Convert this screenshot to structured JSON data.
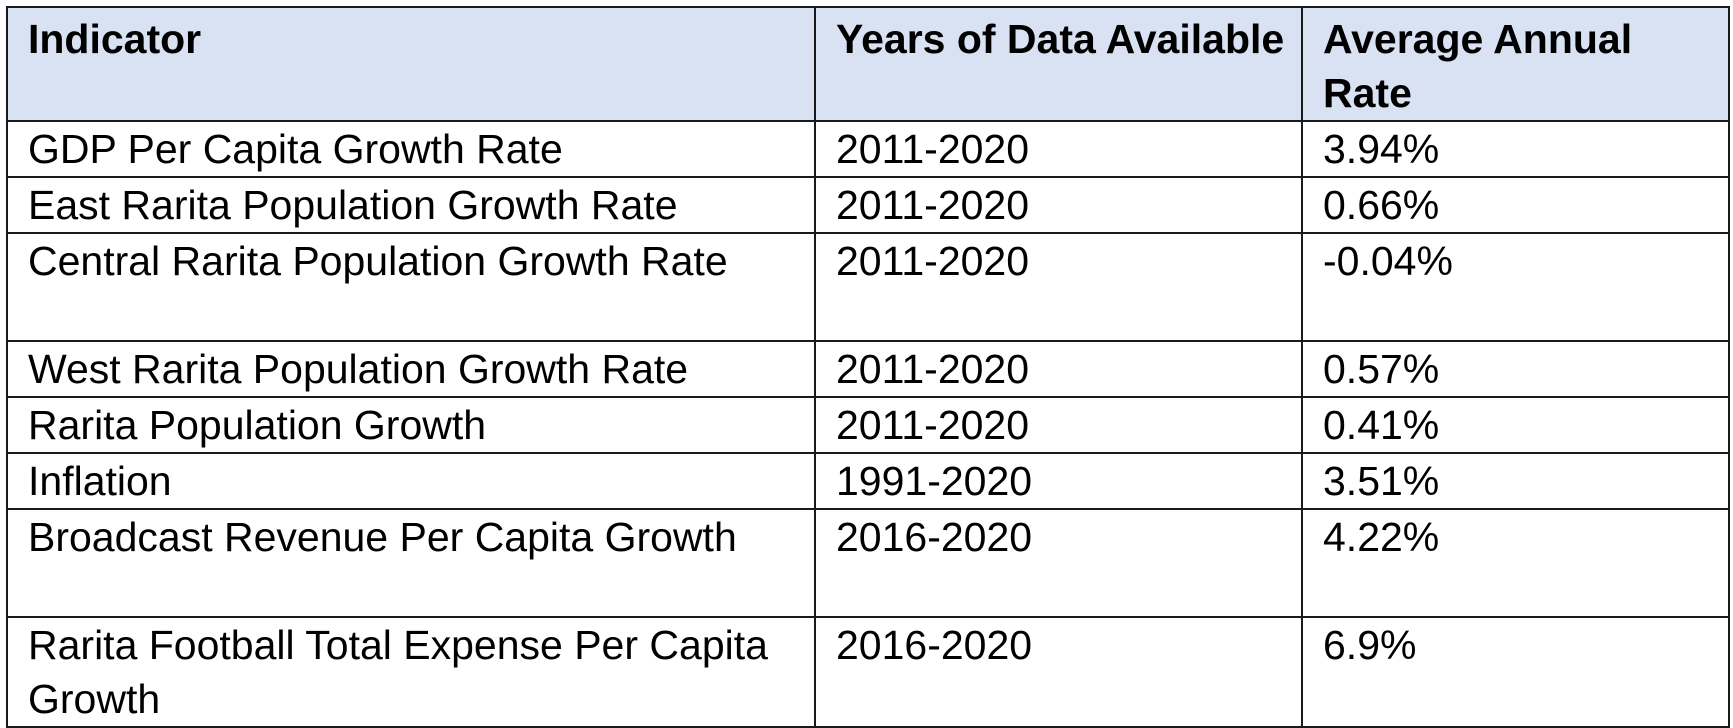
{
  "table": {
    "headers": {
      "indicator": "Indicator",
      "years": "Years of Data Available",
      "rate": "Average Annual Rate"
    },
    "rows": [
      {
        "indicator": "GDP Per Capita Growth Rate",
        "years": "2011-2020",
        "rate": "3.94%"
      },
      {
        "indicator": "East Rarita Population Growth Rate",
        "years": "2011-2020",
        "rate": "0.66%"
      },
      {
        "indicator": "Central Rarita Population Growth Rate",
        "years": "2011-2020",
        "rate": "-0.04%"
      },
      {
        "indicator": "West Rarita Population Growth Rate",
        "years": "2011-2020",
        "rate": "0.57%"
      },
      {
        "indicator": "Rarita Population Growth",
        "years": "2011-2020",
        "rate": "0.41%"
      },
      {
        "indicator": "Inflation",
        "years": "1991-2020",
        "rate": "3.51%"
      },
      {
        "indicator": "Broadcast Revenue Per Capita Growth",
        "years": "2016-2020",
        "rate": "4.22%"
      },
      {
        "indicator": "Rarita Football Total Expense Per Capita Growth",
        "years": "2016-2020",
        "rate": "6.9%"
      }
    ]
  },
  "colors": {
    "header_background": "#d9e2f3",
    "border": "#1a1a1a",
    "text": "#000000"
  }
}
